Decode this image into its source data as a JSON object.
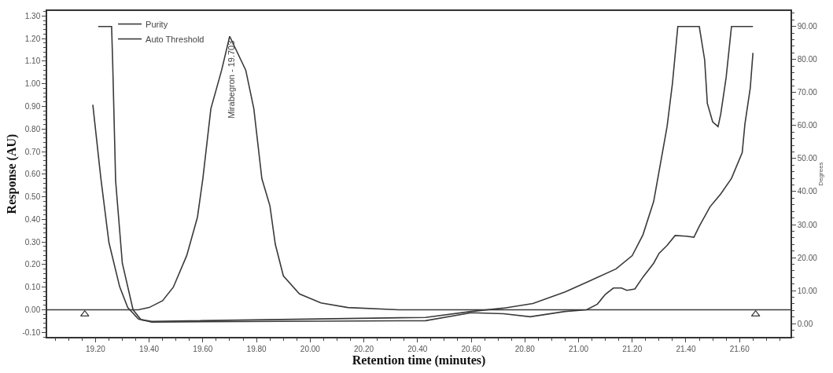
{
  "chart_data": {
    "type": "line",
    "xlabel": "Retention time (minutes)",
    "ylabel": "Response (AU)",
    "y2label": "Degrees",
    "annotations": [
      {
        "text": "Mirabegron - 19.703",
        "x": 19.703,
        "y": 1.21
      }
    ],
    "series": [
      {
        "color": "#3a3a3a",
        "x": [
          19.02,
          19.36,
          19.4,
          19.45,
          19.49,
          19.54,
          19.58,
          19.6,
          19.63,
          19.67,
          19.7,
          19.76,
          19.79,
          19.82,
          19.85,
          19.87,
          19.9,
          19.96,
          20.04,
          20.14,
          20.33,
          21.79
        ],
        "values": [
          0,
          0,
          0.01,
          0.04,
          0.1,
          0.24,
          0.41,
          0.58,
          0.89,
          1.06,
          1.21,
          1.06,
          0.89,
          0.58,
          0.46,
          0.29,
          0.15,
          0.07,
          0.03,
          0.01,
          0,
          0
        ]
      },
      {
        "name": "Purity",
        "color": "#3a3a3a",
        "axis": "y2",
        "x": [
          19.21,
          19.26,
          19.264,
          19.275,
          19.3,
          19.34,
          19.37,
          19.41,
          20.43,
          20.6,
          20.72,
          20.83,
          20.95,
          21.04,
          21.14,
          21.2,
          21.24,
          21.28,
          21.33,
          21.35,
          21.37,
          21.45,
          21.47,
          21.48,
          21.5,
          21.52,
          21.53,
          21.55,
          21.57,
          21.65
        ],
        "values": [
          90,
          90,
          79.2,
          43.3,
          18.3,
          4.2,
          1.2,
          0.7,
          1.9,
          3.7,
          4.7,
          6.1,
          9.6,
          12.9,
          16.6,
          20.6,
          26.9,
          37.0,
          59.7,
          72.8,
          90,
          90,
          79.9,
          66.7,
          61.1,
          59.7,
          63.5,
          74.5,
          90,
          90
        ]
      },
      {
        "name": "Auto Threshold",
        "color": "#3a3a3a",
        "axis": "y2",
        "x": [
          19.19,
          19.22,
          19.25,
          19.29,
          19.32,
          19.36,
          19.41,
          20.43,
          20.6,
          20.72,
          20.82,
          20.95,
          21.03,
          21.07,
          21.1,
          21.13,
          21.16,
          21.18,
          21.21,
          21.24,
          21.28,
          21.3,
          21.33,
          21.36,
          21.4,
          21.43,
          21.45,
          21.49,
          21.53,
          21.57,
          21.61,
          21.62,
          21.64,
          21.65
        ],
        "values": [
          66.3,
          44.0,
          24.6,
          11.2,
          4.9,
          1.4,
          0.5,
          0.9,
          3.3,
          3.0,
          2.1,
          3.7,
          4.2,
          5.9,
          8.9,
          10.8,
          10.8,
          10.1,
          10.5,
          14.1,
          18.3,
          21.3,
          23.7,
          26.7,
          26.5,
          26.2,
          29.5,
          35.4,
          39.3,
          44.0,
          51.8,
          60.4,
          71.4,
          82.0
        ]
      },
      {
        "type": "scatter",
        "marker": "triangle",
        "color": "#3a3a3a",
        "x": [
          19.16,
          21.66
        ],
        "values": [
          -0.02,
          -0.02
        ]
      }
    ],
    "xlim": [
      19.02,
      21.79
    ],
    "ylim": [
      -0.12,
      1.322
    ],
    "y2lim": [
      -4.0,
      94.7
    ],
    "xticks": [
      {
        "value": 19.2,
        "label": "19.20"
      },
      {
        "value": 19.4,
        "label": "19.40"
      },
      {
        "value": 19.6,
        "label": "19.60"
      },
      {
        "value": 19.8,
        "label": "19.80"
      },
      {
        "value": 20.0,
        "label": "20.00"
      },
      {
        "value": 20.2,
        "label": "20.20"
      },
      {
        "value": 20.4,
        "label": "20.40"
      },
      {
        "value": 20.6,
        "label": "20.60"
      },
      {
        "value": 20.8,
        "label": "20.80"
      },
      {
        "value": 21.0,
        "label": "21.00"
      },
      {
        "value": 21.2,
        "label": "21.20"
      },
      {
        "value": 21.4,
        "label": "21.40"
      },
      {
        "value": 21.6,
        "label": "21.60"
      }
    ],
    "yticks": [
      {
        "value": -0.1,
        "label": "-0.10"
      },
      {
        "value": 0,
        "label": "0.00"
      },
      {
        "value": 0.1,
        "label": "0.10"
      },
      {
        "value": 0.2,
        "label": "0.20"
      },
      {
        "value": 0.3,
        "label": "0.30"
      },
      {
        "value": 0.4,
        "label": "0.40"
      },
      {
        "value": 0.5,
        "label": "0.50"
      },
      {
        "value": 0.6,
        "label": "0.60"
      },
      {
        "value": 0.7,
        "label": "0.70"
      },
      {
        "value": 0.8,
        "label": "0.80"
      },
      {
        "value": 0.9,
        "label": "0.90"
      },
      {
        "value": 1.0,
        "label": "1.00"
      },
      {
        "value": 1.1,
        "label": "1.10"
      },
      {
        "value": 1.2,
        "label": "1.20"
      },
      {
        "value": 1.3,
        "label": "1.30"
      }
    ],
    "y2ticks": [
      {
        "value": 0,
        "label": "0.00"
      },
      {
        "value": 10,
        "label": "10.00"
      },
      {
        "value": 20,
        "label": "20.00"
      },
      {
        "value": 30,
        "label": "30.00"
      },
      {
        "value": 40,
        "label": "40.00"
      },
      {
        "value": 50,
        "label": "50.00"
      },
      {
        "value": 60,
        "label": "60.00"
      },
      {
        "value": 70,
        "label": "70.00"
      },
      {
        "value": 80,
        "label": "80.00"
      },
      {
        "value": 90,
        "label": "90.00"
      }
    ],
    "legend": "top left",
    "marker": "none",
    "line_style": "solid"
  }
}
